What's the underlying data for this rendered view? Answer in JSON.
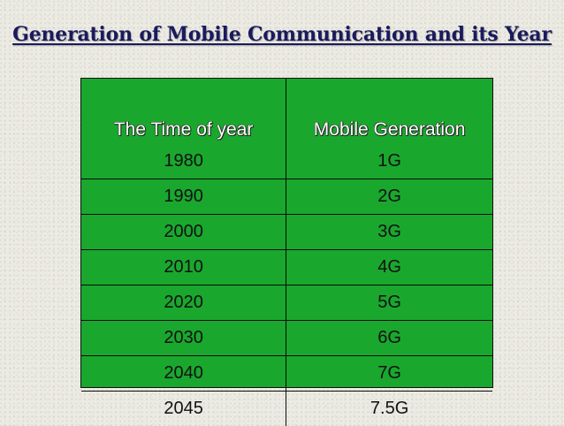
{
  "title": "Generation of Mobile Communication and its Year",
  "table": {
    "headers": {
      "year": "The Time of year",
      "generation": "Mobile Generation"
    },
    "rows": [
      {
        "year": "1980",
        "generation": "1G"
      },
      {
        "year": "1990",
        "generation": "2G"
      },
      {
        "year": "2000",
        "generation": "3G"
      },
      {
        "year": "2010",
        "generation": "4G"
      },
      {
        "year": "2020",
        "generation": "5G"
      },
      {
        "year": "2030",
        "generation": "6G"
      },
      {
        "year": "2040",
        "generation": "7G"
      },
      {
        "year": "2045",
        "generation": "7.5G"
      }
    ]
  },
  "colors": {
    "title": "#1a1a5e",
    "table_background": "#1aa72e",
    "header_text": "#ffffff",
    "cell_text": "#111111"
  }
}
